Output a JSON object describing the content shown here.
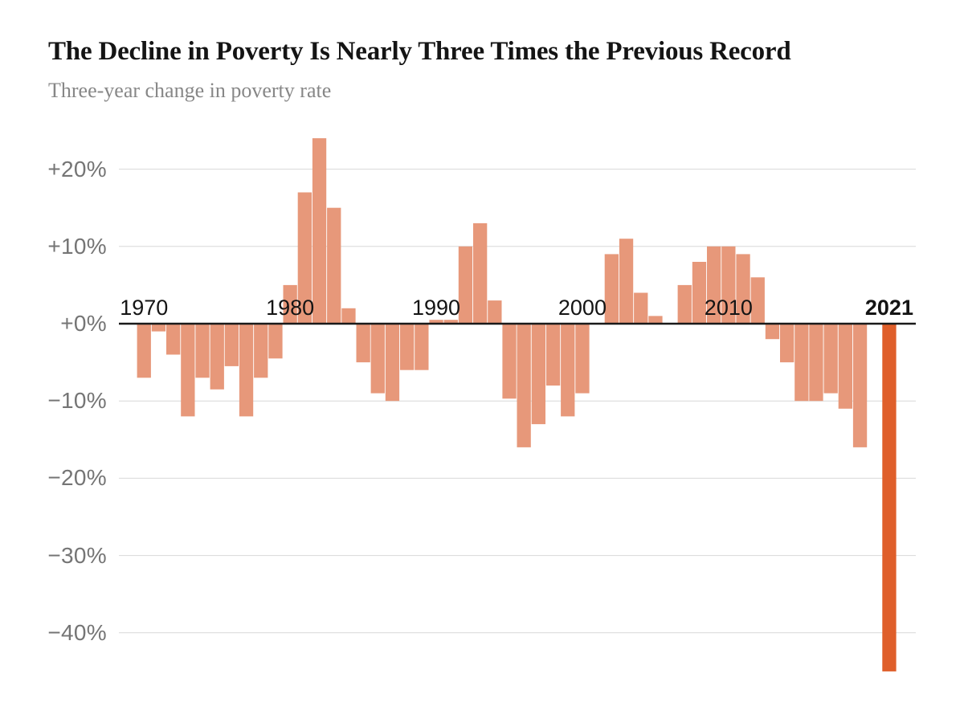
{
  "header": {
    "title": "The Decline in Poverty Is Nearly Three Times the Previous Record",
    "subtitle": "Three-year change in poverty rate"
  },
  "colors": {
    "bar": "#E7987A",
    "highlight_bar": "#DF5F2B",
    "grid_line": "#D8D8D8",
    "zero_line": "#1A1A1A",
    "tick_label": "#757575",
    "year_label": "#141414",
    "title": "#141414",
    "subtitle": "#878787"
  },
  "chart_data": {
    "type": "bar",
    "title": "The Decline in Poverty Is Nearly Three Times the Previous Record",
    "subtitle": "Three-year change in poverty rate",
    "unit": "percent",
    "grid": true,
    "legend_position": "none",
    "ylim": [
      -46,
      25
    ],
    "years": [
      1970,
      1971,
      1972,
      1973,
      1974,
      1975,
      1976,
      1977,
      1978,
      1979,
      1980,
      1981,
      1982,
      1983,
      1984,
      1985,
      1986,
      1987,
      1988,
      1989,
      1990,
      1991,
      1992,
      1993,
      1994,
      1995,
      1996,
      1997,
      1998,
      1999,
      2000,
      2001,
      2002,
      2003,
      2004,
      2005,
      2006,
      2007,
      2008,
      2009,
      2010,
      2011,
      2012,
      2013,
      2014,
      2015,
      2016,
      2017,
      2018,
      2019,
      2020,
      2021
    ],
    "values": [
      -7,
      -1,
      -4,
      -12,
      -7,
      -8.5,
      -5.5,
      -12,
      -7,
      -4.5,
      5,
      17,
      24,
      15,
      2,
      -5,
      -9,
      -10,
      -6,
      -6,
      0.5,
      0.5,
      10,
      13,
      3,
      -9.7,
      -16,
      -13,
      -8,
      -12,
      -9,
      0,
      9,
      11,
      4,
      1,
      0,
      5,
      8,
      10,
      10,
      9,
      6,
      -2,
      -5,
      -10,
      -10,
      -9,
      -11,
      -16,
      0,
      -45
    ],
    "highlight_year": 2021,
    "y_ticks": [
      {
        "value": 20,
        "label": "+20%"
      },
      {
        "value": 10,
        "label": "+10%"
      },
      {
        "value": 0,
        "label": "+0%"
      },
      {
        "value": -10,
        "label": "−10%"
      },
      {
        "value": -20,
        "label": "−20%"
      },
      {
        "value": -30,
        "label": "−30%"
      },
      {
        "value": -40,
        "label": "−40%"
      }
    ],
    "x_axis_labels": [
      {
        "year": 1970,
        "label": "1970",
        "bold": false
      },
      {
        "year": 1980,
        "label": "1980",
        "bold": false
      },
      {
        "year": 1990,
        "label": "1990",
        "bold": false
      },
      {
        "year": 2000,
        "label": "2000",
        "bold": false
      },
      {
        "year": 2010,
        "label": "2010",
        "bold": false
      },
      {
        "year": 2021,
        "label": "2021",
        "bold": true
      }
    ]
  }
}
